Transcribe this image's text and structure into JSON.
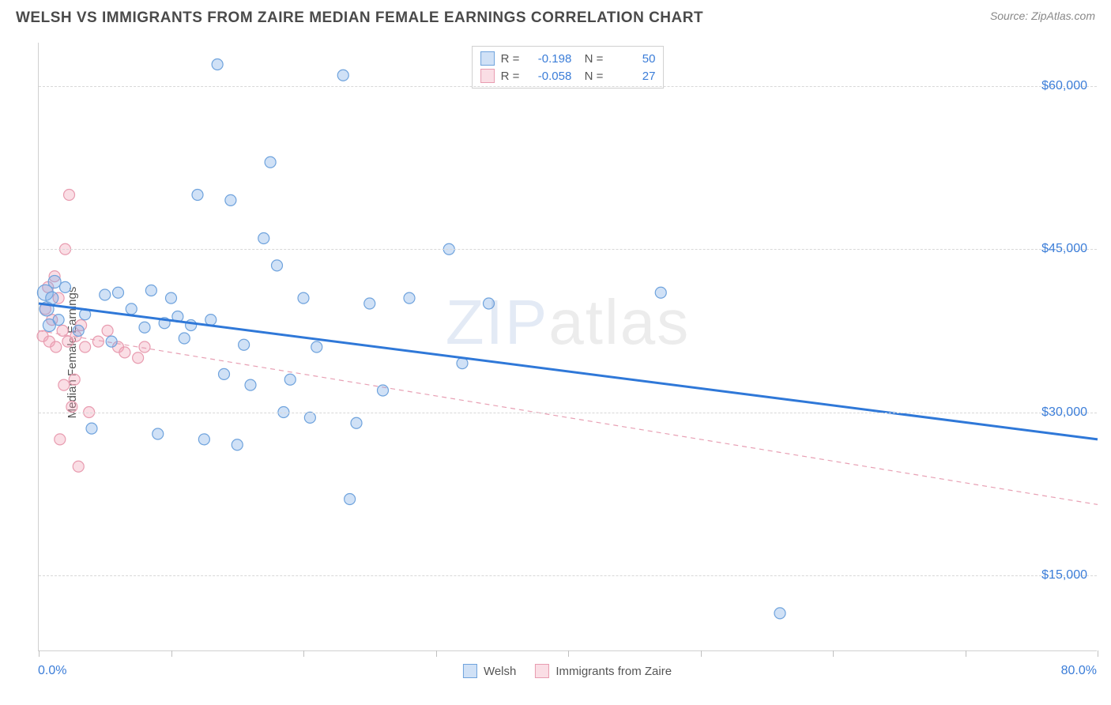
{
  "header": {
    "title": "WELSH VS IMMIGRANTS FROM ZAIRE MEDIAN FEMALE EARNINGS CORRELATION CHART",
    "source": "Source: ZipAtlas.com"
  },
  "axes": {
    "y_label": "Median Female Earnings",
    "x_min_label": "0.0%",
    "x_max_label": "80.0%",
    "x_min": 0,
    "x_max": 80,
    "y_min": 8000,
    "y_max": 64000,
    "y_ticks": [
      15000,
      30000,
      45000,
      60000
    ],
    "y_tick_labels": [
      "$15,000",
      "$30,000",
      "$45,000",
      "$60,000"
    ],
    "x_ticks": [
      0,
      10,
      20,
      30,
      40,
      50,
      60,
      70,
      80
    ]
  },
  "series": {
    "welsh": {
      "label": "Welsh",
      "color_fill": "rgba(120, 170, 230, 0.35)",
      "color_stroke": "#6fa3dd",
      "line_color": "#2f78d8",
      "line_width": 3,
      "line_dash": "none",
      "R": "-0.198",
      "N": "50",
      "trend": {
        "x1": 0,
        "y1": 40000,
        "x2": 80,
        "y2": 27500
      },
      "points": [
        {
          "x": 0.5,
          "y": 41000,
          "r": 10
        },
        {
          "x": 0.6,
          "y": 39500,
          "r": 9
        },
        {
          "x": 1.0,
          "y": 40500,
          "r": 8
        },
        {
          "x": 1.5,
          "y": 38500,
          "r": 7
        },
        {
          "x": 2.0,
          "y": 41500,
          "r": 7
        },
        {
          "x": 3.0,
          "y": 37500,
          "r": 7
        },
        {
          "x": 3.5,
          "y": 39000,
          "r": 7
        },
        {
          "x": 4.0,
          "y": 28500,
          "r": 7
        },
        {
          "x": 5.0,
          "y": 40800,
          "r": 7
        },
        {
          "x": 5.5,
          "y": 36500,
          "r": 7
        },
        {
          "x": 6.0,
          "y": 41000,
          "r": 7
        },
        {
          "x": 7.0,
          "y": 39500,
          "r": 7
        },
        {
          "x": 8.0,
          "y": 37800,
          "r": 7
        },
        {
          "x": 8.5,
          "y": 41200,
          "r": 7
        },
        {
          "x": 9.0,
          "y": 28000,
          "r": 7
        },
        {
          "x": 9.5,
          "y": 38200,
          "r": 7
        },
        {
          "x": 10.0,
          "y": 40500,
          "r": 7
        },
        {
          "x": 10.5,
          "y": 38800,
          "r": 7
        },
        {
          "x": 11.0,
          "y": 36800,
          "r": 7
        },
        {
          "x": 11.5,
          "y": 38000,
          "r": 7
        },
        {
          "x": 12.0,
          "y": 50000,
          "r": 7
        },
        {
          "x": 12.5,
          "y": 27500,
          "r": 7
        },
        {
          "x": 13.0,
          "y": 38500,
          "r": 7
        },
        {
          "x": 13.5,
          "y": 62000,
          "r": 7
        },
        {
          "x": 14.0,
          "y": 33500,
          "r": 7
        },
        {
          "x": 14.5,
          "y": 49500,
          "r": 7
        },
        {
          "x": 15.0,
          "y": 27000,
          "r": 7
        },
        {
          "x": 15.5,
          "y": 36200,
          "r": 7
        },
        {
          "x": 16.0,
          "y": 32500,
          "r": 7
        },
        {
          "x": 17.0,
          "y": 46000,
          "r": 7
        },
        {
          "x": 17.5,
          "y": 53000,
          "r": 7
        },
        {
          "x": 18.0,
          "y": 43500,
          "r": 7
        },
        {
          "x": 18.5,
          "y": 30000,
          "r": 7
        },
        {
          "x": 19.0,
          "y": 33000,
          "r": 7
        },
        {
          "x": 20.0,
          "y": 40500,
          "r": 7
        },
        {
          "x": 20.5,
          "y": 29500,
          "r": 7
        },
        {
          "x": 21.0,
          "y": 36000,
          "r": 7
        },
        {
          "x": 23.0,
          "y": 61000,
          "r": 7
        },
        {
          "x": 23.5,
          "y": 22000,
          "r": 7
        },
        {
          "x": 24.0,
          "y": 29000,
          "r": 7
        },
        {
          "x": 25.0,
          "y": 40000,
          "r": 7
        },
        {
          "x": 26.0,
          "y": 32000,
          "r": 7
        },
        {
          "x": 28.0,
          "y": 40500,
          "r": 7
        },
        {
          "x": 31.0,
          "y": 45000,
          "r": 7
        },
        {
          "x": 32.0,
          "y": 34500,
          "r": 7
        },
        {
          "x": 34.0,
          "y": 40000,
          "r": 7
        },
        {
          "x": 47.0,
          "y": 41000,
          "r": 7
        },
        {
          "x": 56.0,
          "y": 11500,
          "r": 7
        },
        {
          "x": 1.2,
          "y": 42000,
          "r": 8
        },
        {
          "x": 0.8,
          "y": 38000,
          "r": 8
        }
      ]
    },
    "zaire": {
      "label": "Immigrants from Zaire",
      "color_fill": "rgba(240, 160, 180, 0.35)",
      "color_stroke": "#e89cb0",
      "line_color": "#e8a0b4",
      "line_width": 1.2,
      "line_dash": "6,5",
      "R": "-0.058",
      "N": "27",
      "trend": {
        "x1": 0,
        "y1": 37500,
        "x2": 80,
        "y2": 21500
      },
      "points": [
        {
          "x": 0.3,
          "y": 37000,
          "r": 7
        },
        {
          "x": 0.5,
          "y": 39500,
          "r": 7
        },
        {
          "x": 0.7,
          "y": 41500,
          "r": 7
        },
        {
          "x": 0.8,
          "y": 36500,
          "r": 7
        },
        {
          "x": 1.0,
          "y": 38500,
          "r": 7
        },
        {
          "x": 1.2,
          "y": 42500,
          "r": 7
        },
        {
          "x": 1.3,
          "y": 36000,
          "r": 7
        },
        {
          "x": 1.5,
          "y": 40500,
          "r": 7
        },
        {
          "x": 1.6,
          "y": 27500,
          "r": 7
        },
        {
          "x": 1.8,
          "y": 37500,
          "r": 7
        },
        {
          "x": 1.9,
          "y": 32500,
          "r": 7
        },
        {
          "x": 2.0,
          "y": 45000,
          "r": 7
        },
        {
          "x": 2.2,
          "y": 36500,
          "r": 7
        },
        {
          "x": 2.3,
          "y": 50000,
          "r": 7
        },
        {
          "x": 2.5,
          "y": 30500,
          "r": 7
        },
        {
          "x": 2.7,
          "y": 33000,
          "r": 7
        },
        {
          "x": 2.8,
          "y": 37000,
          "r": 7
        },
        {
          "x": 3.0,
          "y": 25000,
          "r": 7
        },
        {
          "x": 3.2,
          "y": 38000,
          "r": 7
        },
        {
          "x": 3.5,
          "y": 36000,
          "r": 7
        },
        {
          "x": 3.8,
          "y": 30000,
          "r": 7
        },
        {
          "x": 4.5,
          "y": 36500,
          "r": 7
        },
        {
          "x": 5.2,
          "y": 37500,
          "r": 7
        },
        {
          "x": 6.0,
          "y": 36000,
          "r": 7
        },
        {
          "x": 6.5,
          "y": 35500,
          "r": 7
        },
        {
          "x": 7.5,
          "y": 35000,
          "r": 7
        },
        {
          "x": 8.0,
          "y": 36000,
          "r": 7
        }
      ]
    }
  },
  "watermark": {
    "main": "ZIP",
    "sub": "atlas"
  },
  "styling": {
    "background_color": "#ffffff",
    "grid_color": "#d8d8d8",
    "axis_color": "#d0d0d0",
    "tick_label_color": "#3b7dd8",
    "text_color": "#555555",
    "title_color": "#4a4a4a"
  }
}
